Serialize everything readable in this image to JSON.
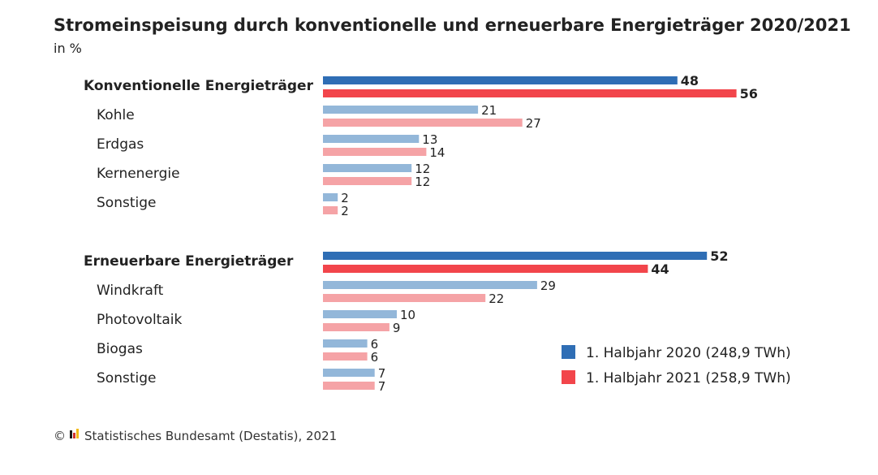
{
  "chart_data": {
    "type": "bar",
    "title": "Stromeinspeisung durch konventionelle und erneuerbare Energieträger 2020/2021",
    "subtitle": "in %",
    "categories": [
      "Konventionelle Energieträger",
      "Kohle",
      "Erdgas",
      "Kernenergie",
      "Sonstige",
      "Erneuerbare Energieträger",
      "Windkraft",
      "Photovoltaik",
      "Biogas",
      "Sonstige"
    ],
    "group_flags": [
      true,
      false,
      false,
      false,
      false,
      true,
      false,
      false,
      false,
      false
    ],
    "series": [
      {
        "name": "1. Halbjahr 2020 (248,9 TWh)",
        "values": [
          48,
          21,
          13,
          12,
          2,
          52,
          29,
          10,
          6,
          7
        ]
      },
      {
        "name": "1. Halbjahr 2021 (258,9 TWh)",
        "values": [
          56,
          27,
          14,
          12,
          2,
          44,
          22,
          9,
          6,
          7
        ]
      }
    ],
    "colors": {
      "group": [
        "#2f6eb5",
        "#f2454b"
      ],
      "item": [
        "#93b7d9",
        "#f5a3a6"
      ]
    },
    "xlim": [
      0,
      100
    ],
    "legend_position": "bottom-right",
    "grid": false
  },
  "source": "© Statistisches Bundesamt (Destatis), 2021"
}
